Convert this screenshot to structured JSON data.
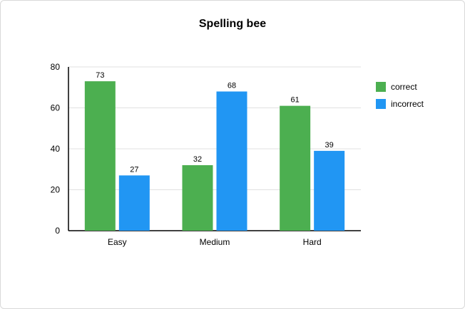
{
  "chart_data": {
    "type": "bar",
    "title": "Spelling bee",
    "xlabel": "",
    "ylabel": "",
    "categories": [
      "Easy",
      "Medium",
      "Hard"
    ],
    "series": [
      {
        "name": "correct",
        "values": [
          73,
          32,
          61
        ],
        "color": "#4caf50"
      },
      {
        "name": "incorrect",
        "values": [
          27,
          68,
          39
        ],
        "color": "#2196f3"
      }
    ],
    "ylim": [
      0,
      80
    ],
    "yticks": [
      "0",
      "20",
      "40",
      "60",
      "80"
    ],
    "grid": true,
    "legend_position": "right"
  }
}
